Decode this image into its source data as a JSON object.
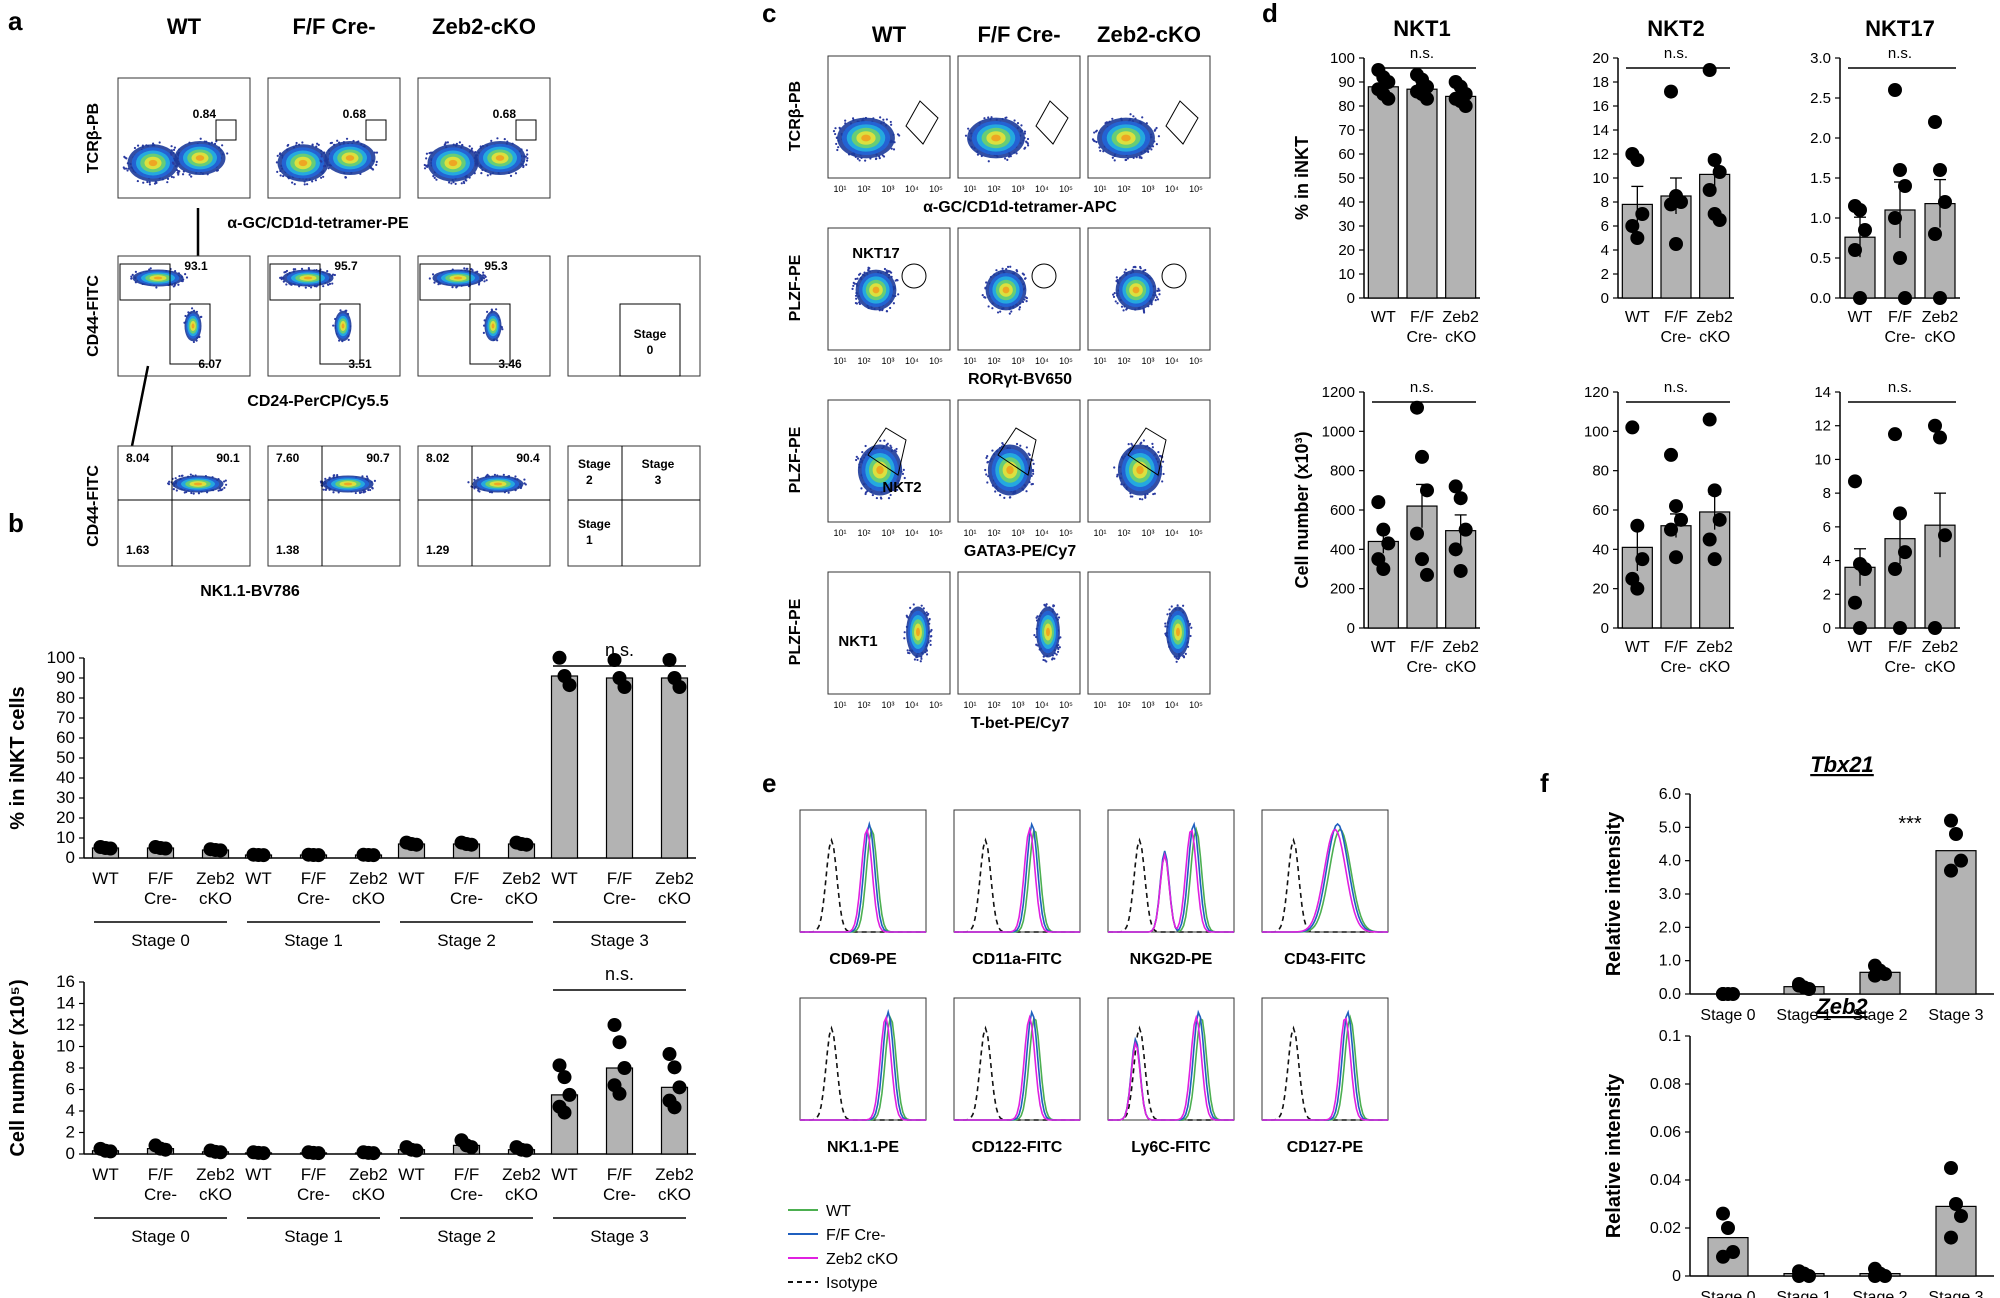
{
  "panels": {
    "a": "a",
    "b": "b",
    "c": "c",
    "d": "d",
    "e": "e",
    "f": "f"
  },
  "panel_a": {
    "col_headers": [
      "WT",
      "F/F Cre-",
      "Zeb2-cKO"
    ],
    "row1": {
      "ylabel": "TCRβ-PB",
      "xlabel": "α-GC/CD1d-tetramer-PE",
      "values": [
        "0.84",
        "0.68",
        "0.68"
      ]
    },
    "row2": {
      "ylabel": "CD44-FITC",
      "xlabel": "CD24-PerCP/Cy5.5",
      "top": [
        "93.1",
        "95.7",
        "95.3"
      ],
      "bottom": [
        "6.07",
        "3.51",
        "3.46"
      ],
      "schematic": "Stage 0"
    },
    "row3": {
      "ylabel": "CD44-FITC",
      "xlabel": "NK1.1-BV786",
      "tl": [
        "8.04",
        "7.60",
        "8.02"
      ],
      "tr": [
        "90.1",
        "90.7",
        "90.4"
      ],
      "bl": [
        "1.63",
        "1.38",
        "1.29"
      ],
      "schematic": [
        "Stage 2",
        "Stage 3",
        "Stage 1"
      ]
    }
  },
  "panel_c": {
    "col_headers": [
      "WT",
      "F/F Cre-",
      "Zeb2-cKO"
    ],
    "rows": [
      {
        "ylabel": "TCRβ-PB",
        "xlabel": "α-GC/CD1d-tetramer-APC",
        "gate": ""
      },
      {
        "ylabel": "PLZF-PE",
        "xlabel": "RORγt-BV650",
        "gate": "NKT17"
      },
      {
        "ylabel": "PLZF-PE",
        "xlabel": "GATA3-PE/Cy7",
        "gate": "NKT2"
      },
      {
        "ylabel": "PLZF-PE",
        "xlabel": "T-bet-PE/Cy7",
        "gate": "NKT1"
      }
    ],
    "ticks": [
      "10¹",
      "10²",
      "10³",
      "10⁴",
      "10⁵"
    ]
  },
  "panel_e": {
    "labels": [
      "CD69-PE",
      "CD11a-FITC",
      "NKG2D-PE",
      "CD43-FITC",
      "NK1.1-PE",
      "CD122-FITC",
      "Ly6C-FITC",
      "CD127-PE"
    ],
    "legend": [
      {
        "name": "WT",
        "color": "#4caf50",
        "dash": false
      },
      {
        "name": "F/F Cre-",
        "color": "#1f5fbf",
        "dash": false
      },
      {
        "name": "Zeb2 cKO",
        "color": "#e020e0",
        "dash": false
      },
      {
        "name": "Isotype",
        "color": "#111111",
        "dash": true
      }
    ]
  },
  "chart_data": [
    {
      "id": "b-top",
      "type": "bar",
      "ylabel": "% in iNKT cells",
      "ylim": [
        0,
        100
      ],
      "yticks": [
        0,
        10,
        20,
        30,
        40,
        50,
        60,
        70,
        80,
        90,
        100
      ],
      "groups": [
        "Stage 0",
        "Stage 1",
        "Stage 2",
        "Stage 3"
      ],
      "categories": [
        "WT",
        "F/F\nCre-",
        "Zeb2\ncKO"
      ],
      "values": [
        [
          5,
          5,
          4
        ],
        [
          1.5,
          1.5,
          1.5
        ],
        [
          7,
          7,
          7
        ],
        [
          91,
          90,
          90
        ]
      ],
      "annotation": "n.s.",
      "annot_group": 3
    },
    {
      "id": "b-bot",
      "type": "bar",
      "ylabel": "Cell number (x10⁵)",
      "ylim": [
        0,
        16
      ],
      "yticks": [
        0,
        2,
        4,
        6,
        8,
        10,
        12,
        14,
        16
      ],
      "groups": [
        "Stage 0",
        "Stage 1",
        "Stage 2",
        "Stage 3"
      ],
      "categories": [
        "WT",
        "F/F\nCre-",
        "Zeb2\ncKO"
      ],
      "values": [
        [
          0.3,
          0.5,
          0.2
        ],
        [
          0.1,
          0.1,
          0.1
        ],
        [
          0.4,
          0.8,
          0.4
        ],
        [
          5.5,
          8,
          6.2
        ]
      ],
      "annotation": "n.s.",
      "annot_group": 3
    },
    {
      "id": "d1",
      "type": "bar",
      "title": "NKT1",
      "ylabel": "% in iNKT",
      "ylim": [
        0,
        100
      ],
      "yticks": [
        0,
        10,
        20,
        30,
        40,
        50,
        60,
        70,
        80,
        90,
        100
      ],
      "categories": [
        "WT",
        "F/F\nCre-",
        "Zeb2\ncKO"
      ],
      "values": [
        88,
        87,
        84
      ],
      "err": [
        3,
        2,
        3
      ],
      "points": [
        [
          95,
          92,
          90,
          87,
          85,
          83
        ],
        [
          93,
          91,
          88,
          86,
          85,
          83
        ],
        [
          90,
          88,
          85,
          83,
          82,
          80
        ]
      ],
      "annotation": "n.s."
    },
    {
      "id": "d2",
      "type": "bar",
      "title": "NKT2",
      "ylabel": "",
      "ylim": [
        0,
        20
      ],
      "yticks": [
        0,
        2,
        4,
        6,
        8,
        10,
        12,
        14,
        16,
        18,
        20
      ],
      "categories": [
        "WT",
        "F/F\nCre-",
        "Zeb2\ncKO"
      ],
      "values": [
        7.8,
        8.5,
        10.3
      ],
      "err": [
        1.5,
        1.5,
        1.5
      ],
      "points": [
        [
          12,
          11.5,
          7,
          6,
          5
        ],
        [
          17.2,
          8.5,
          8,
          7.8,
          4.5
        ],
        [
          19,
          11.5,
          10.5,
          9,
          7,
          6.5
        ]
      ],
      "annotation": "n.s."
    },
    {
      "id": "d3",
      "type": "bar",
      "title": "NKT17",
      "ylabel": "",
      "ylim": [
        0,
        3
      ],
      "yticks": [
        "0.0",
        "0.5",
        "1.0",
        "1.5",
        "2.0",
        "2.5",
        "3.0"
      ],
      "categories": [
        "WT",
        "F/F\nCre-",
        "Zeb2\ncKO"
      ],
      "values": [
        0.76,
        1.1,
        1.18
      ],
      "err": [
        0.25,
        0.35,
        0.3
      ],
      "points": [
        [
          1.15,
          1.1,
          0.85,
          0.6,
          0.0
        ],
        [
          2.6,
          1.6,
          1.4,
          1.0,
          0.5,
          0.0
        ],
        [
          2.2,
          1.6,
          1.2,
          0.8,
          0.0
        ]
      ],
      "annotation": "n.s."
    },
    {
      "id": "d4",
      "type": "bar",
      "title": "",
      "ylabel": "Cell number (x10³)",
      "ylim": [
        0,
        1200
      ],
      "yticks": [
        0,
        200,
        400,
        600,
        800,
        1000,
        1200
      ],
      "categories": [
        "WT",
        "F/F\nCre-",
        "Zeb2\ncKO"
      ],
      "values": [
        440,
        620,
        495
      ],
      "err": [
        60,
        110,
        80
      ],
      "points": [
        [
          640,
          500,
          430,
          350,
          300
        ],
        [
          1120,
          870,
          700,
          480,
          350,
          270
        ],
        [
          720,
          660,
          500,
          400,
          290
        ]
      ],
      "annotation": "n.s."
    },
    {
      "id": "d5",
      "type": "bar",
      "title": "",
      "ylabel": "",
      "ylim": [
        0,
        120
      ],
      "yticks": [
        0,
        20,
        40,
        60,
        80,
        100,
        120
      ],
      "categories": [
        "WT",
        "F/F\nCre-",
        "Zeb2\ncKO"
      ],
      "values": [
        41,
        52,
        59
      ],
      "err": [
        12,
        6,
        9
      ],
      "points": [
        [
          102,
          52,
          35,
          25,
          20
        ],
        [
          88,
          62,
          55,
          50,
          36
        ],
        [
          106,
          70,
          55,
          45,
          35
        ]
      ],
      "annotation": "n.s."
    },
    {
      "id": "d6",
      "type": "bar",
      "title": "",
      "ylabel": "",
      "ylim": [
        0,
        14
      ],
      "yticks": [
        0,
        2,
        4,
        6,
        8,
        10,
        12,
        14
      ],
      "categories": [
        "WT",
        "F/F\nCre-",
        "Zeb2\ncKO"
      ],
      "values": [
        3.6,
        5.3,
        6.1
      ],
      "err": [
        1.1,
        1.5,
        1.9
      ],
      "points": [
        [
          8.7,
          3.8,
          3.5,
          1.5,
          0
        ],
        [
          11.5,
          6.8,
          4.5,
          3.5,
          0
        ],
        [
          12,
          11.3,
          5.5,
          0
        ]
      ],
      "annotation": "n.s."
    },
    {
      "id": "f1",
      "type": "bar",
      "title": "Tbx21",
      "ylabel": "Relative intensity",
      "ylim": [
        0,
        6
      ],
      "yticks": [
        "0.0",
        "1.0",
        "2.0",
        "3.0",
        "4.0",
        "5.0",
        "6.0"
      ],
      "categories": [
        "Stage 0",
        "Stage 1",
        "Stage 2",
        "Stage 3"
      ],
      "values": [
        0,
        0.22,
        0.65,
        4.3
      ],
      "err": [
        0,
        0.05,
        0.08,
        0.3
      ],
      "points": [
        [
          0,
          0,
          0,
          0
        ],
        [
          0.3,
          0.2,
          0.15,
          0.25
        ],
        [
          0.85,
          0.7,
          0.6,
          0.55
        ],
        [
          5.2,
          4.8,
          4.0,
          3.7
        ]
      ],
      "annotation": "***"
    },
    {
      "id": "f2",
      "type": "bar",
      "title": "Zeb2",
      "ylabel": "Relative intensity",
      "ylim": [
        0,
        0.1
      ],
      "yticks": [
        "0",
        "0.02",
        "0.04",
        "0.06",
        "0.08",
        "0.1"
      ],
      "categories": [
        "Stage 0",
        "Stage 1",
        "Stage 2",
        "Stage 3"
      ],
      "values": [
        0.016,
        0.001,
        0.001,
        0.029
      ],
      "err": [
        0.004,
        0.001,
        0.001,
        0.007
      ],
      "points": [
        [
          0.026,
          0.02,
          0.01,
          0.008
        ],
        [
          0.002,
          0.001,
          0.0,
          0.0
        ],
        [
          0.003,
          0.001,
          0.0,
          0.0
        ],
        [
          0.045,
          0.03,
          0.025,
          0.016
        ]
      ],
      "annotation": ""
    }
  ]
}
